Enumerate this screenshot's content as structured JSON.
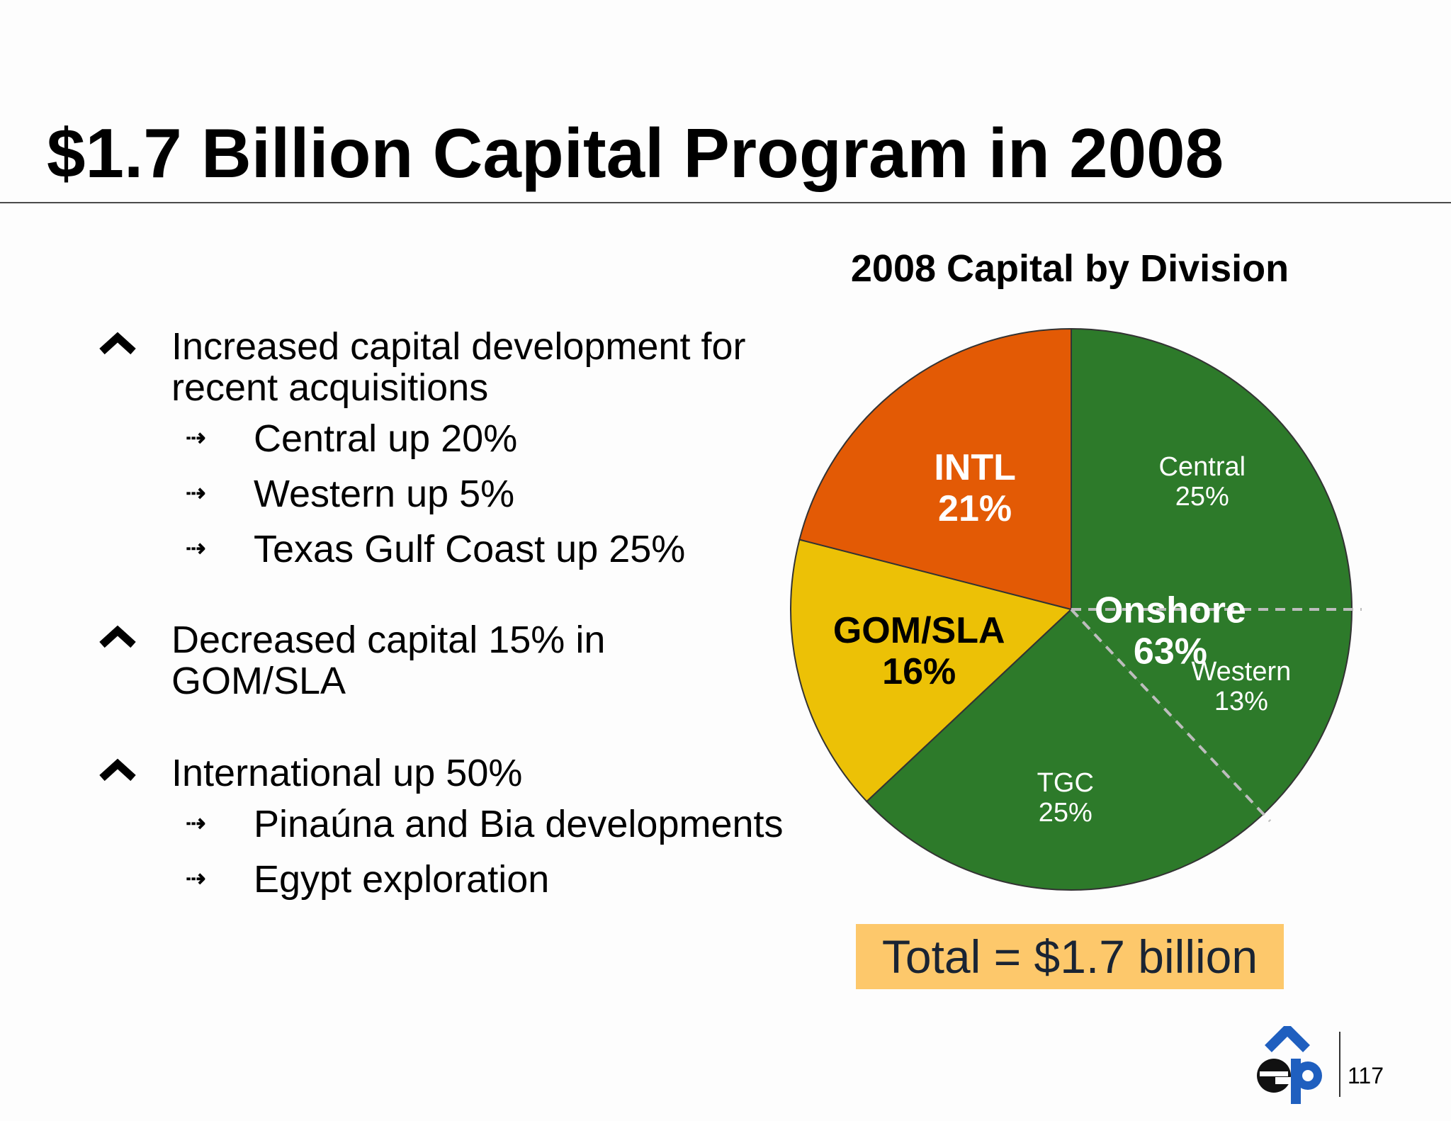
{
  "slide": {
    "title": "$1.7 Billion Capital Program in 2008",
    "page_number": "117",
    "total_label": "Total = $1.7 billion"
  },
  "bullets": [
    {
      "icon": "chevron-up-icon",
      "text": "Increased capital development for recent acquisitions",
      "subs": [
        {
          "icon": "arrow-right-icon",
          "text": "Central up 20%"
        },
        {
          "icon": "arrow-right-icon",
          "text": "Western up 5%"
        },
        {
          "icon": "arrow-right-icon",
          "text": "Texas Gulf Coast up 25%"
        }
      ]
    },
    {
      "icon": "chevron-up-icon",
      "text": "Decreased capital 15% in GOM/SLA",
      "subs": []
    },
    {
      "icon": "chevron-up-icon",
      "text": "International up 50%",
      "subs": [
        {
          "icon": "arrow-right-icon",
          "text": "Pinaúna and Bia developments"
        },
        {
          "icon": "arrow-right-icon",
          "text": "Egypt exploration"
        }
      ]
    }
  ],
  "colors": {
    "green": "#2d7a2a",
    "orange": "#e35a05",
    "yellow": "#ecc106",
    "total_box": "#fdc86b",
    "logo_blue": "#1f5fbf"
  },
  "chart_data": {
    "type": "pie",
    "title": "2008 Capital by Division",
    "unit": "percent of total capital",
    "slices": [
      {
        "label": "Central",
        "value": 25,
        "group": "Onshore",
        "color": "#2d7a2a"
      },
      {
        "label": "Western",
        "value": 13,
        "group": "Onshore",
        "color": "#2d7a2a"
      },
      {
        "label": "TGC",
        "value": 25,
        "group": "Onshore",
        "color": "#2d7a2a"
      },
      {
        "label": "GOM/SLA",
        "value": 16,
        "color": "#ecc106"
      },
      {
        "label": "INTL",
        "value": 21,
        "color": "#e35a05"
      }
    ],
    "group_labels": [
      {
        "label": "Onshore",
        "value": 63
      }
    ],
    "value_suffix": "%"
  }
}
